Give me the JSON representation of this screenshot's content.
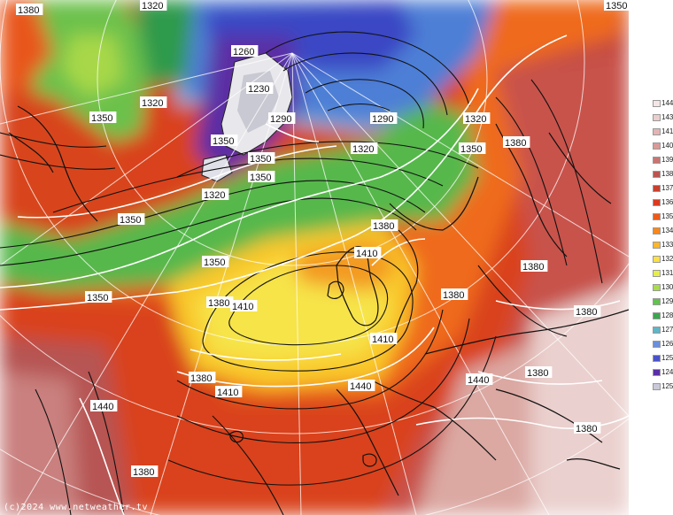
{
  "map": {
    "credit": "(c)2024 www.netweather.tv",
    "contour_labels": [
      "1380",
      "1320",
      "1350",
      "1260",
      "1230",
      "1290",
      "1320",
      "1290",
      "1320",
      "1350",
      "1380",
      "1350",
      "1320",
      "1350",
      "1350",
      "1350",
      "1320",
      "1350",
      "1380",
      "1410",
      "1380",
      "1350",
      "1350",
      "1380",
      "1410",
      "1380",
      "1380",
      "1410",
      "1440",
      "1440",
      "1380",
      "1380",
      "1410",
      "1440",
      "1380",
      "1380"
    ]
  },
  "legend": {
    "labels": [
      "144",
      "143",
      "141",
      "140",
      "139",
      "138",
      "137",
      "136",
      "135",
      "134",
      "133",
      "132",
      "131",
      "130",
      "129",
      "128",
      "127",
      "126",
      "125",
      "124",
      "125"
    ],
    "colors": [
      "#f5e6e6",
      "#eccdcd",
      "#e3b4b4",
      "#d99a98",
      "#c97472",
      "#bb5451",
      "#c8402e",
      "#db3a1f",
      "#ee5a18",
      "#f9881b",
      "#fcb62a",
      "#fbe046",
      "#e6ef4a",
      "#a9dc4a",
      "#5fc34c",
      "#3aa64f",
      "#5fb6c6",
      "#6b8fdc",
      "#4a52c9",
      "#5a2fa6",
      "#c9c9d9"
    ]
  }
}
